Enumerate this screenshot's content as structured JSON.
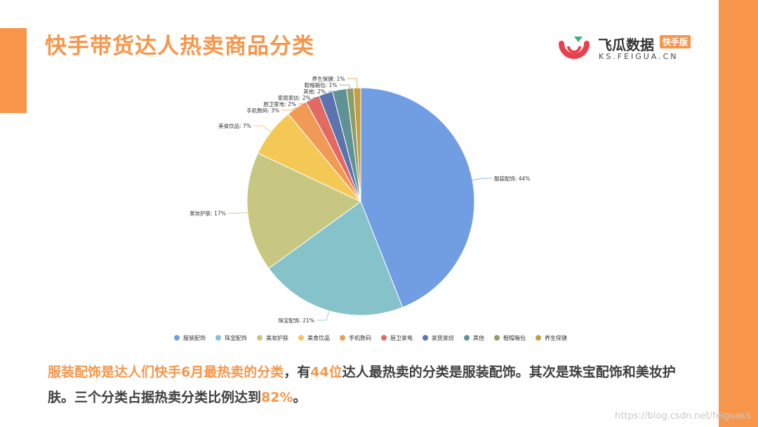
{
  "header": {
    "title": "快手带货达人热卖商品分类"
  },
  "logo": {
    "name": "飞瓜数据",
    "badge": "快手版",
    "domain": "KS.FEIGUA.CN"
  },
  "colors": {
    "accent": "#F7964A",
    "title": "#F7964A",
    "text": "#404040"
  },
  "chart_data": {
    "type": "pie",
    "title": "",
    "slices": [
      {
        "name": "服装配饰",
        "value": 44,
        "label": "服装配饰: 44%",
        "color": "#719DE3"
      },
      {
        "name": "珠宝配饰",
        "value": 21,
        "label": "珠宝配饰: 21%",
        "color": "#86C2C9"
      },
      {
        "name": "美妆护肤",
        "value": 17,
        "label": "美妆护肤: 17%",
        "color": "#C8C782"
      },
      {
        "name": "美食饮品",
        "value": 7,
        "label": "美食饮品: 7%",
        "color": "#F4C855"
      },
      {
        "name": "手机数码",
        "value": 3,
        "label": "手机数码: 3%",
        "color": "#F19A55"
      },
      {
        "name": "厨卫家电",
        "value": 2,
        "label": "厨卫家电: 2%",
        "color": "#E26A63"
      },
      {
        "name": "家居家纺",
        "value": 2,
        "label": "家居家纺: 2%",
        "color": "#5B74AE"
      },
      {
        "name": "其他",
        "value": 2,
        "label": "其他: 2%",
        "color": "#5E9295"
      },
      {
        "name": "鞋帽箱包",
        "value": 1,
        "label": "鞋帽箱包: 1%",
        "color": "#8E9D68"
      },
      {
        "name": "养生保健",
        "value": 1,
        "label": "养生保健: 1%",
        "color": "#C49E3F"
      }
    ],
    "legend_position": "bottom"
  },
  "summary": {
    "part1": "服装配饰是达人们快手6月最热卖的分类",
    "part2": "，有",
    "part3": "44位",
    "part4": "达人最热卖的分类是服装配饰。其次是珠宝配饰和美妆护肤。三个分类占据热卖分类比例达到",
    "part5": "82%",
    "part6": "。"
  },
  "watermark": "https://blog.csdn.net/feiguaks"
}
